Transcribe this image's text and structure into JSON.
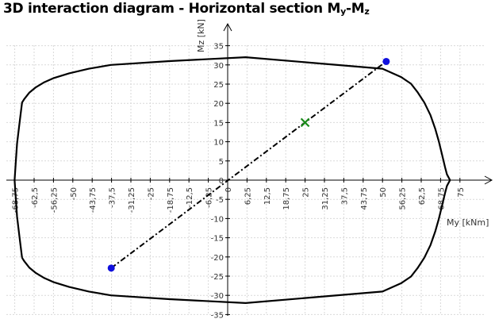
{
  "title": {
    "main": "3D interaction diagram - Horizontal section M",
    "sub1": "y",
    "sep": "-M",
    "sub2": "z"
  },
  "chart_data": {
    "type": "line",
    "xlabel": "My [kNm]",
    "ylabel": "Mz [kN]",
    "xlim": [
      -75,
      75
    ],
    "ylim": [
      -35,
      35
    ],
    "xticks": [
      -68.75,
      -62.5,
      -56.25,
      -50,
      -43.75,
      -37.5,
      -31.25,
      -25,
      -18.75,
      -12.5,
      -6.25,
      0,
      6.25,
      12.5,
      18.75,
      25,
      31.25,
      37.5,
      43.75,
      50,
      56.25,
      62.5,
      68.75,
      75
    ],
    "xtick_labels": [
      "-68,75",
      "-62,5",
      "-56,25",
      "-50",
      "-43,75",
      "-37,5",
      "-31,25",
      "-25",
      "-18,75",
      "-12,5",
      "-6,25",
      "0",
      "6,25",
      "12,5",
      "18,75",
      "25",
      "31,25",
      "37,5",
      "43,75",
      "50",
      "56,25",
      "62,5",
      "68,75",
      "75"
    ],
    "yticks": [
      35,
      30,
      25,
      20,
      15,
      10,
      5,
      0,
      -5,
      -10,
      -15,
      -20,
      -25,
      -30,
      -35
    ],
    "ytick_labels": [
      "35",
      "30",
      "25",
      "20",
      "15",
      "10",
      "5",
      "0",
      "-5",
      "-10",
      "-15",
      "-20",
      "-25",
      "-30",
      "-35"
    ],
    "grid": true,
    "series": [
      {
        "style": "solid",
        "color": "#000000",
        "x": [
          -66.4,
          -65.6,
          -64,
          -61.9,
          -59.2,
          -56.1,
          -51.2,
          -44.8,
          -37.7,
          -18.8,
          5.8,
          50,
          56.1,
          59.2,
          61.4,
          63.5,
          65.5,
          67,
          68.2,
          69.2,
          70.2,
          70.8,
          71.8,
          71.8,
          70.8,
          70.2,
          69.2,
          68.2,
          67,
          65.5,
          63.5,
          61.4,
          59.2,
          56.1,
          50,
          5.8,
          -18.8,
          -37.7,
          -44.8,
          -51.2,
          -56.1,
          -59.2,
          -61.9,
          -64,
          -65.6,
          -66.4,
          -67.2,
          -68,
          -68.4,
          -68.8,
          -68.8,
          -68.4,
          -68,
          -67.2,
          -66.4
        ],
        "y": [
          -20.2,
          -21.2,
          -22.8,
          -24.2,
          -25.5,
          -26.6,
          -27.8,
          -29.0,
          -30.0,
          -31.0,
          -32.0,
          -29.0,
          -26.8,
          -25.1,
          -22.8,
          -20.2,
          -16.9,
          -13.4,
          -10.0,
          -6.7,
          -3.3,
          -1.5,
          0.0,
          0.0,
          1.5,
          3.3,
          6.7,
          10.0,
          13.4,
          16.9,
          20.2,
          22.8,
          25.1,
          26.8,
          29.0,
          32.0,
          31.0,
          30.0,
          29.0,
          27.8,
          26.6,
          25.5,
          24.2,
          22.8,
          21.2,
          20.2,
          15.0,
          9.5,
          5.0,
          0.0,
          0.0,
          -5.0,
          -9.5,
          -15.0,
          -20.2
        ]
      },
      {
        "style": "dash-dot",
        "color": "#000000",
        "x": [
          -37.6,
          51.2
        ],
        "y": [
          -22.9,
          30.9
        ]
      }
    ],
    "points": [
      {
        "marker": "circle",
        "color": "#1010dd",
        "x": -37.6,
        "y": -22.9
      },
      {
        "marker": "circle",
        "color": "#1010dd",
        "x": 51.2,
        "y": 30.9
      },
      {
        "marker": "cross",
        "color": "#1a8a1a",
        "x": 25.0,
        "y": 15.0
      }
    ]
  }
}
